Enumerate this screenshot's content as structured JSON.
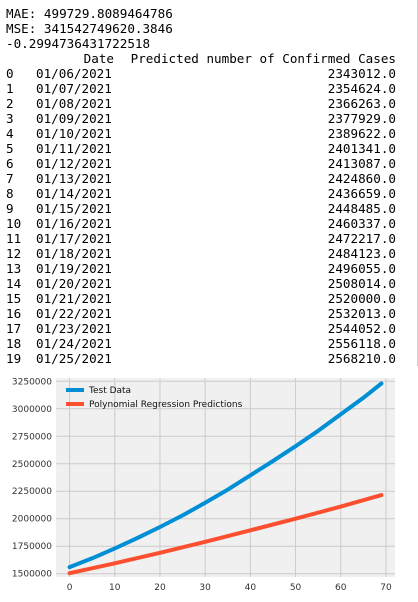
{
  "metrics": {
    "mae": "MAE: 499729.8089464786",
    "mse": "MSE: 341542749620.3846",
    "r2": "-0.2994736431722518"
  },
  "table": {
    "headers": [
      "Date",
      "Predicted number of Confirmed Cases"
    ],
    "rows": [
      {
        "index": "0",
        "date": "01/06/2021",
        "pred": "2343012.0"
      },
      {
        "index": "1",
        "date": "01/07/2021",
        "pred": "2354624.0"
      },
      {
        "index": "2",
        "date": "01/08/2021",
        "pred": "2366263.0"
      },
      {
        "index": "3",
        "date": "01/09/2021",
        "pred": "2377929.0"
      },
      {
        "index": "4",
        "date": "01/10/2021",
        "pred": "2389622.0"
      },
      {
        "index": "5",
        "date": "01/11/2021",
        "pred": "2401341.0"
      },
      {
        "index": "6",
        "date": "01/12/2021",
        "pred": "2413087.0"
      },
      {
        "index": "7",
        "date": "01/13/2021",
        "pred": "2424860.0"
      },
      {
        "index": "8",
        "date": "01/14/2021",
        "pred": "2436659.0"
      },
      {
        "index": "9",
        "date": "01/15/2021",
        "pred": "2448485.0"
      },
      {
        "index": "10",
        "date": "01/16/2021",
        "pred": "2460337.0"
      },
      {
        "index": "11",
        "date": "01/17/2021",
        "pred": "2472217.0"
      },
      {
        "index": "12",
        "date": "01/18/2021",
        "pred": "2484123.0"
      },
      {
        "index": "13",
        "date": "01/19/2021",
        "pred": "2496055.0"
      },
      {
        "index": "14",
        "date": "01/20/2021",
        "pred": "2508014.0"
      },
      {
        "index": "15",
        "date": "01/21/2021",
        "pred": "2520000.0"
      },
      {
        "index": "16",
        "date": "01/22/2021",
        "pred": "2532013.0"
      },
      {
        "index": "17",
        "date": "01/23/2021",
        "pred": "2544052.0"
      },
      {
        "index": "18",
        "date": "01/24/2021",
        "pred": "2556118.0"
      },
      {
        "index": "19",
        "date": "01/25/2021",
        "pred": "2568210.0"
      }
    ]
  },
  "chart_data": {
    "type": "line",
    "title": "",
    "xlabel": "",
    "ylabel": "",
    "xlim": [
      -3,
      72
    ],
    "ylim": [
      1470000,
      3280000
    ],
    "x_ticks": [
      0,
      10,
      20,
      30,
      40,
      50,
      60,
      70
    ],
    "y_ticks": [
      1500000,
      1750000,
      2000000,
      2250000,
      2500000,
      2750000,
      3000000,
      3250000
    ],
    "grid": true,
    "legend_position": "top-left",
    "background": "#f0f0f0",
    "series": [
      {
        "name": "Test Data",
        "color": "#008fd5",
        "x": [
          0,
          5,
          10,
          15,
          20,
          25,
          30,
          35,
          40,
          45,
          50,
          55,
          60,
          65,
          69
        ],
        "y": [
          1560000,
          1640000,
          1730000,
          1825000,
          1925000,
          2030000,
          2145000,
          2265000,
          2395000,
          2525000,
          2660000,
          2800000,
          2950000,
          3100000,
          3230000
        ]
      },
      {
        "name": "Polynomial Regression Predictions",
        "color": "#fc4f30",
        "x": [
          0,
          10,
          20,
          30,
          40,
          50,
          60,
          69
        ],
        "y": [
          1505000,
          1595000,
          1690000,
          1790000,
          1895000,
          2000000,
          2110000,
          2215000
        ]
      }
    ]
  }
}
